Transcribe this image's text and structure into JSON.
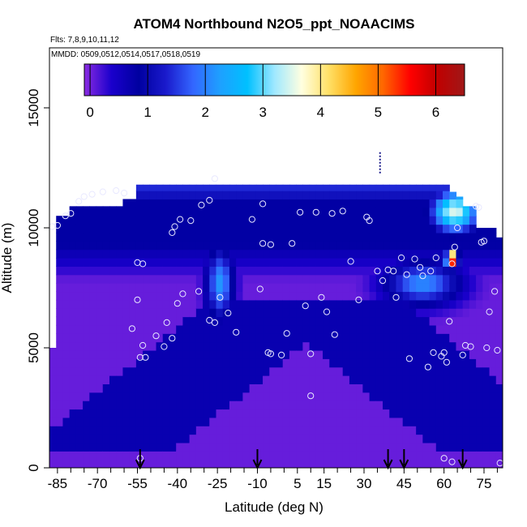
{
  "chart_data": {
    "type": "heatmap",
    "title": "ATOM4 Northbound N2O5_ppt_NOAACIMS",
    "subtitle_flights": "Flts: 7,8,9,10,11,12",
    "subtitle_dates": "MMDD: 0509,0512,0514,0517,0518,0519",
    "xlabel": "Latitude (deg N)",
    "ylabel": "Altitude (m)",
    "xlim": [
      -88,
      82
    ],
    "ylim": [
      0,
      17500
    ],
    "x_ticks": [
      -85,
      -70,
      -55,
      -40,
      -25,
      -10,
      5,
      15,
      30,
      45,
      60,
      75
    ],
    "x_minor_ticks": [
      -80,
      -75,
      -65,
      -60,
      -50,
      -45,
      -35,
      -30,
      -20,
      -15,
      -5,
      0,
      10,
      20,
      25,
      35,
      40,
      50,
      55,
      65,
      70,
      80
    ],
    "y_ticks": [
      0,
      5000,
      10000,
      15000
    ],
    "colorbar": {
      "min": -0.1,
      "max": 6.5,
      "ticks": [
        0,
        1,
        2,
        3,
        4,
        5,
        6
      ],
      "colors": [
        "#8a2be2",
        "#1a00cc",
        "#0000a0",
        "#1a1acc",
        "#3366ff",
        "#1ea0ff",
        "#00c0ff",
        "#9fe8ff",
        "#ffffe0",
        "#ffe066",
        "#ffa500",
        "#ff6600",
        "#ff0000",
        "#c00000",
        "#a01818"
      ]
    },
    "arrow_latitudes": [
      -54,
      -10,
      39,
      45,
      67
    ],
    "top_marker": {
      "lat": 36,
      "alt": 12700
    },
    "profile": {
      "lat_edges": [
        -88,
        -85,
        -80,
        -60,
        -56,
        -48,
        -38,
        -25,
        -12,
        -5,
        5,
        15,
        25,
        38,
        48,
        55,
        62,
        64,
        68,
        72,
        80,
        82
      ],
      "top_alt": [
        5000,
        10500,
        10900,
        11200,
        11800,
        11800,
        11800,
        11800,
        11800,
        11800,
        11800,
        11800,
        11800,
        11800,
        11800,
        11800,
        11500,
        11300,
        10900,
        10000,
        9600,
        7800
      ]
    },
    "regions": [
      {
        "name": "background",
        "value": 0.05
      },
      {
        "name": "upper-band",
        "value": 0.8
      },
      {
        "name": "top-band",
        "value": 1.4
      },
      {
        "name": "v-trough",
        "value": 0.75
      },
      {
        "name": "left-plume",
        "value": 2.2
      },
      {
        "name": "right-plume",
        "value": 2.1
      },
      {
        "name": "north-high",
        "value": 3.5
      },
      {
        "name": "hotspot",
        "value": 6.2
      }
    ],
    "points": [
      [
        -87,
        10050
      ],
      [
        -85,
        10100
      ],
      [
        -82,
        10500
      ],
      [
        -80,
        10600
      ],
      [
        -77,
        11100
      ],
      [
        -75,
        11300
      ],
      [
        -72,
        11400
      ],
      [
        -68,
        11500
      ],
      [
        -63,
        11550
      ],
      [
        -60,
        11450
      ],
      [
        -55,
        8550
      ],
      [
        -53,
        8500
      ],
      [
        -55,
        7000
      ],
      [
        -57,
        5800
      ],
      [
        -53,
        5100
      ],
      [
        -54,
        4600
      ],
      [
        -52,
        4600
      ],
      [
        -48,
        5500
      ],
      [
        -45,
        5050
      ],
      [
        -44,
        6050
      ],
      [
        -42,
        5400
      ],
      [
        -40,
        6850
      ],
      [
        -38,
        7250
      ],
      [
        -42,
        9800
      ],
      [
        -41,
        10050
      ],
      [
        -39,
        10350
      ],
      [
        -35,
        10300
      ],
      [
        -31,
        10950
      ],
      [
        -28,
        11150
      ],
      [
        -26,
        12050
      ],
      [
        -32,
        7350
      ],
      [
        -28,
        6150
      ],
      [
        -26,
        6050
      ],
      [
        -24,
        7100
      ],
      [
        -21,
        6450
      ],
      [
        -18,
        5650
      ],
      [
        -8,
        11000
      ],
      [
        -12,
        10350
      ],
      [
        -8,
        9350
      ],
      [
        -5,
        9300
      ],
      [
        -9,
        7450
      ],
      [
        -6,
        4800
      ],
      [
        -5,
        4750
      ],
      [
        -1,
        4700
      ],
      [
        1,
        5600
      ],
      [
        3,
        9350
      ],
      [
        6,
        10650
      ],
      [
        8,
        6750
      ],
      [
        10,
        4750
      ],
      [
        10,
        3000
      ],
      [
        12,
        10650
      ],
      [
        14,
        7100
      ],
      [
        16,
        6500
      ],
      [
        18,
        10600
      ],
      [
        19,
        5550
      ],
      [
        22,
        10700
      ],
      [
        25,
        8600
      ],
      [
        28,
        7000
      ],
      [
        31,
        10450
      ],
      [
        32,
        10300
      ],
      [
        35,
        8200
      ],
      [
        37,
        7800
      ],
      [
        39,
        8250
      ],
      [
        41,
        8200
      ],
      [
        42,
        7100
      ],
      [
        44,
        8750
      ],
      [
        46,
        8050
      ],
      [
        47,
        4550
      ],
      [
        49,
        8700
      ],
      [
        51,
        8350
      ],
      [
        52,
        8000
      ],
      [
        54,
        4200
      ],
      [
        55,
        8200
      ],
      [
        56,
        4800
      ],
      [
        57,
        8750
      ],
      [
        59,
        4650
      ],
      [
        60,
        4800
      ],
      [
        61,
        4400
      ],
      [
        62,
        6100
      ],
      [
        63,
        8500
      ],
      [
        64,
        9200
      ],
      [
        65,
        10000
      ],
      [
        67,
        4700
      ],
      [
        68,
        5100
      ],
      [
        70,
        5050
      ],
      [
        72,
        10900
      ],
      [
        73,
        10850
      ],
      [
        74,
        9400
      ],
      [
        75,
        9450
      ],
      [
        76,
        5000
      ],
      [
        77,
        6500
      ],
      [
        79,
        7350
      ],
      [
        80,
        4900
      ],
      [
        81,
        200
      ],
      [
        -54,
        400
      ],
      [
        60,
        400
      ],
      [
        63,
        250
      ]
    ]
  }
}
